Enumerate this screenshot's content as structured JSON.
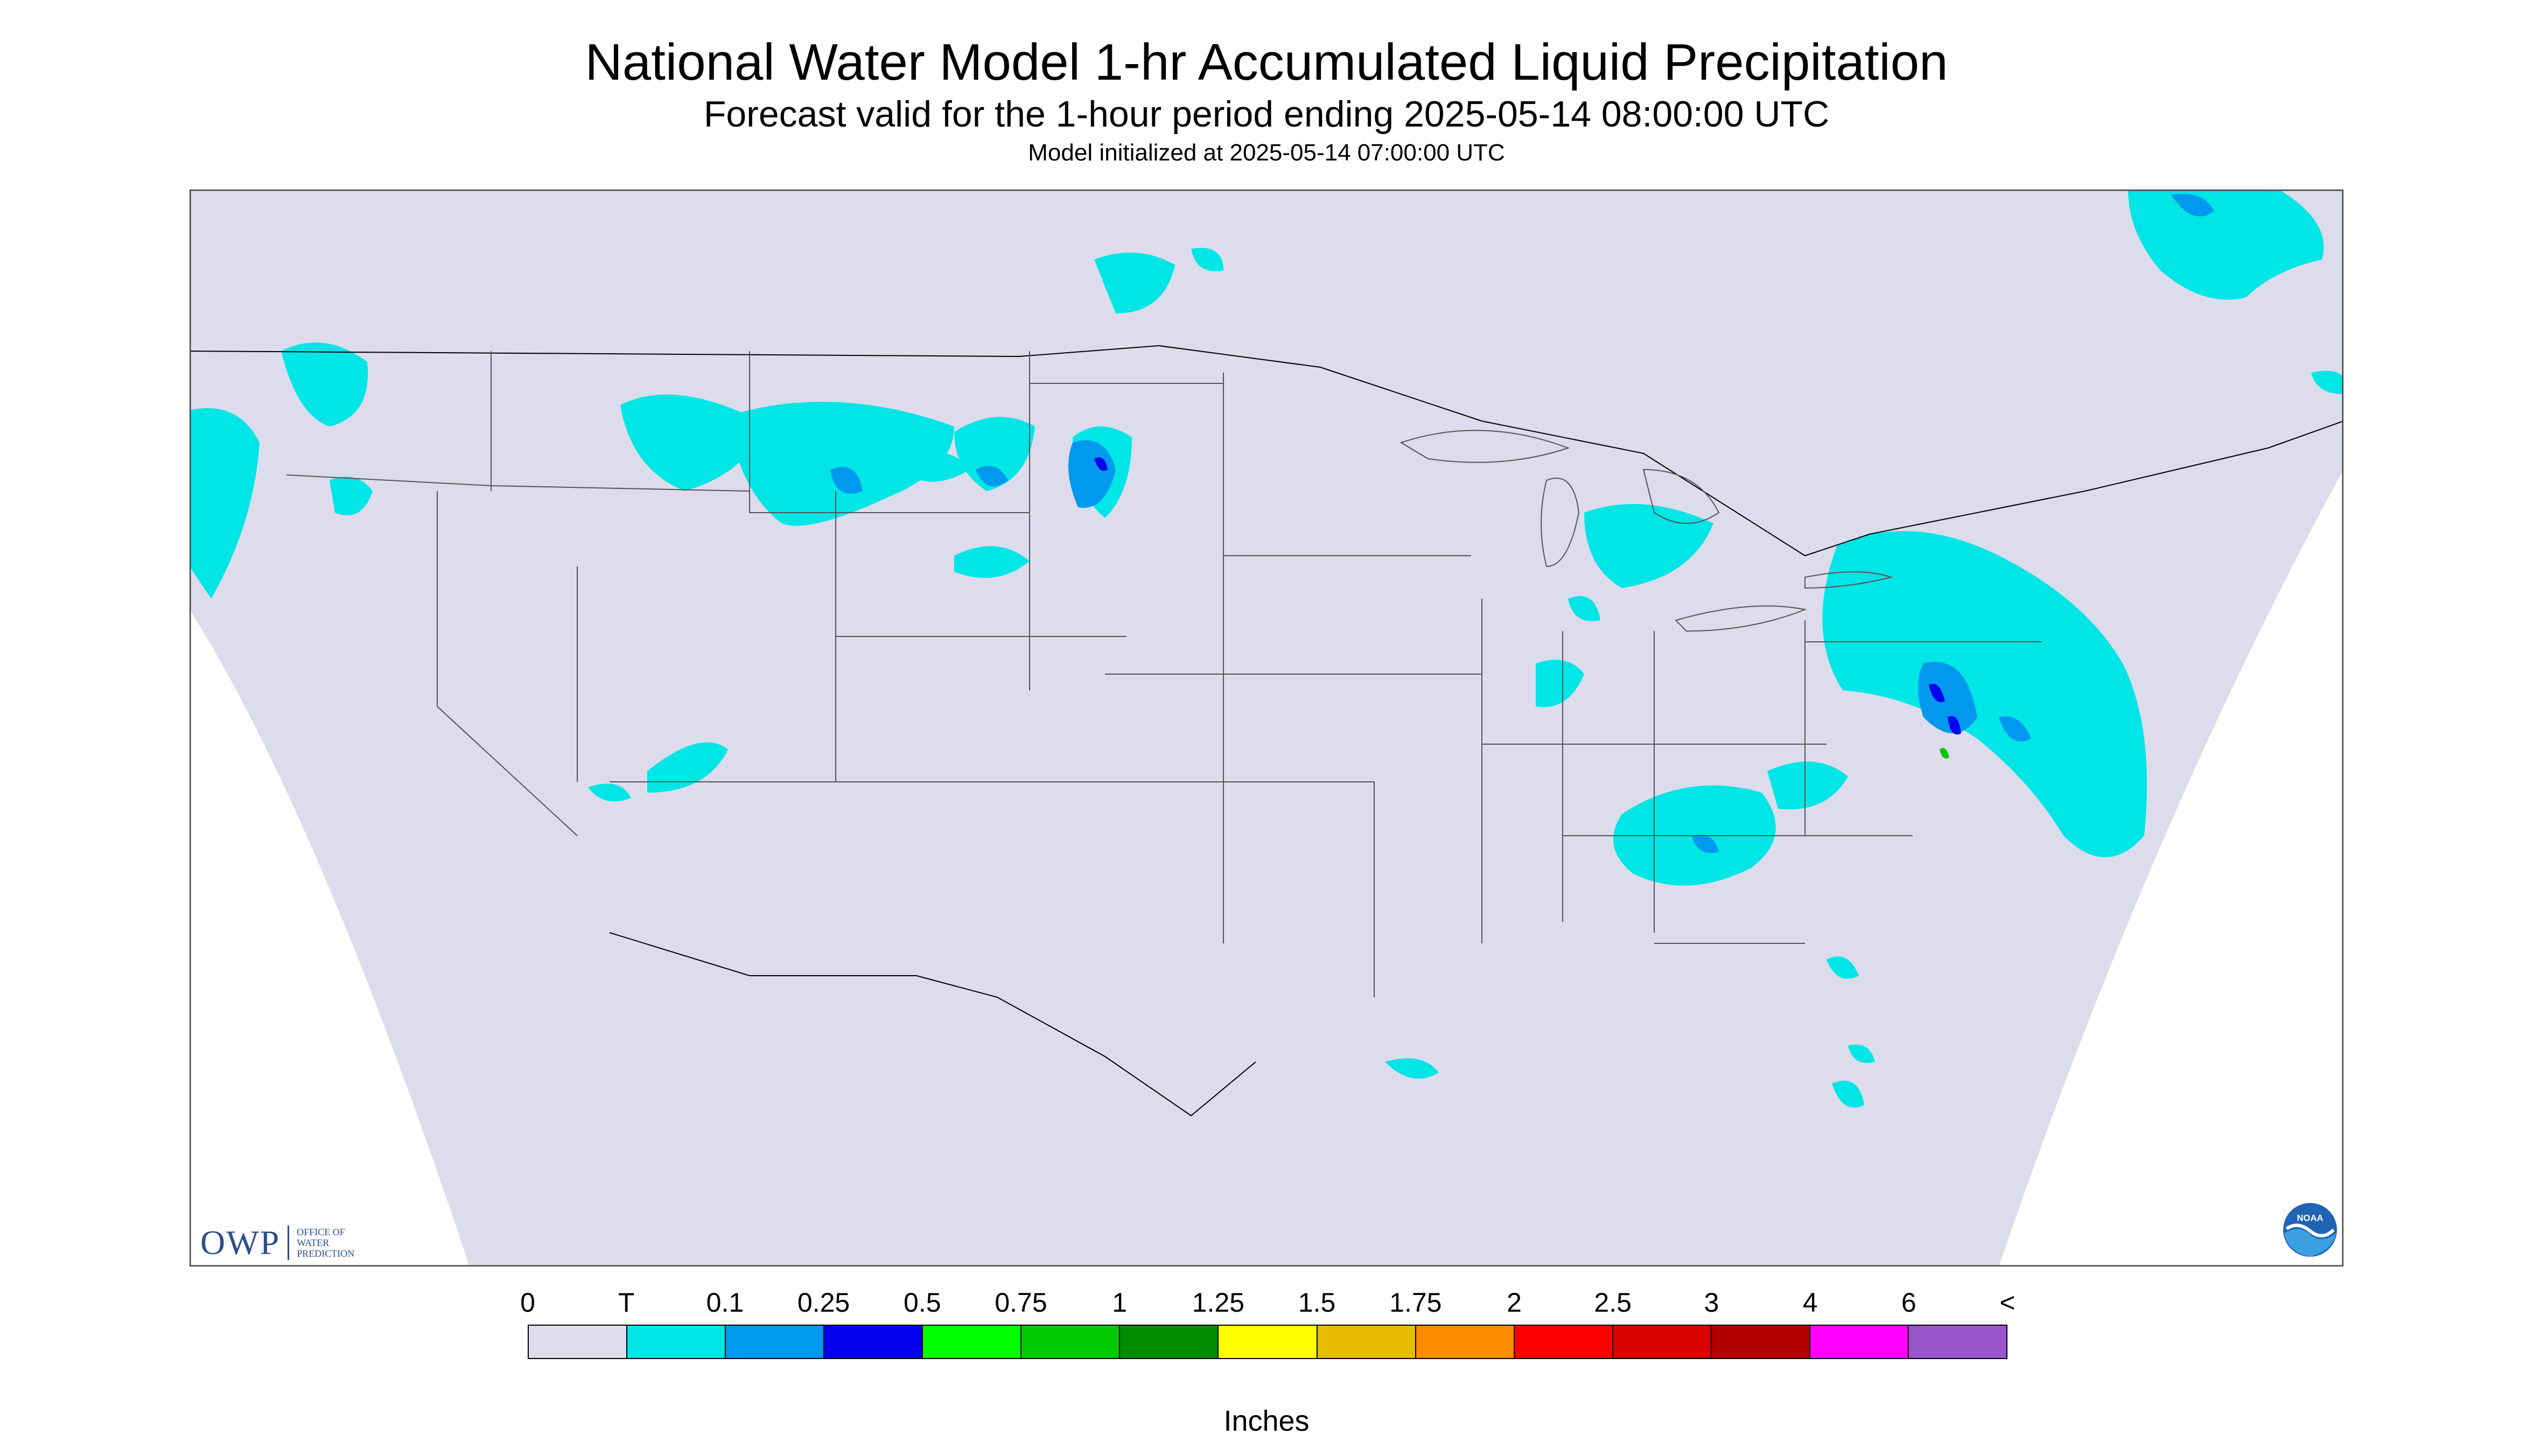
{
  "header": {
    "title": "National Water Model 1-hr Accumulated Liquid Precipitation",
    "subtitle": "Forecast valid for the 1-hour period ending 2025-05-14 08:00:00 UTC",
    "init": "Model initialized at 2025-05-14 07:00:00 UTC"
  },
  "map": {
    "background": "#dcdcec",
    "outside": "#ffffff",
    "boundary_color": "#000000",
    "projection": "Lambert Conformal Conic",
    "region": "CONUS"
  },
  "logos": {
    "owp_main": "OWP",
    "owp_sub": "Office of Water Prediction",
    "noaa": "NOAA"
  },
  "legend": {
    "labels": [
      "0",
      "T",
      "0.1",
      "0.25",
      "0.5",
      "0.75",
      "1",
      "1.25",
      "1.5",
      "1.75",
      "2",
      "2.5",
      "3",
      "4",
      "6",
      "<"
    ],
    "colors": [
      "#dcdcec",
      "#00e5e5",
      "#0099ee",
      "#0000ee",
      "#00ff00",
      "#00c800",
      "#008c00",
      "#ffff00",
      "#e5bc00",
      "#ff8c00",
      "#ff0000",
      "#d80000",
      "#b40000",
      "#ff00ff",
      "#9955cc"
    ],
    "units": "Inches"
  }
}
